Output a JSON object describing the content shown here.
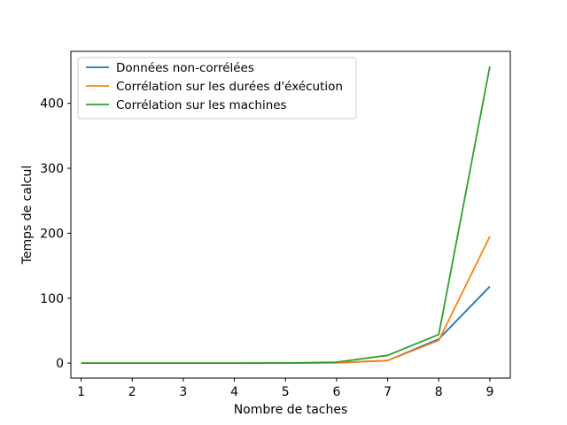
{
  "chart_data": {
    "type": "line",
    "title": "",
    "xlabel": "Nombre de taches",
    "ylabel": "Temps de calcul",
    "x": [
      1,
      2,
      3,
      4,
      5,
      6,
      7,
      8,
      9
    ],
    "xlim": [
      0.8,
      9.4
    ],
    "ylim": [
      -23,
      480
    ],
    "xticks": [
      1,
      2,
      3,
      4,
      5,
      6,
      7,
      8,
      9
    ],
    "yticks": [
      0,
      100,
      200,
      300,
      400
    ],
    "grid": false,
    "legend_position": "top-left",
    "series": [
      {
        "name": "Données non-corrélées",
        "color": "#1f77b4",
        "values": [
          0,
          0,
          0,
          0,
          0.1,
          0.5,
          4,
          37,
          118
        ]
      },
      {
        "name": "Corrélation sur les durées d'éxécution",
        "color": "#ff7f0e",
        "values": [
          0,
          0,
          0,
          0,
          0.1,
          0.5,
          4,
          35,
          195
        ]
      },
      {
        "name": "Corrélation sur les machines",
        "color": "#2ca02c",
        "values": [
          0,
          0,
          0,
          0,
          0.2,
          1.5,
          12,
          44,
          457
        ]
      }
    ]
  }
}
